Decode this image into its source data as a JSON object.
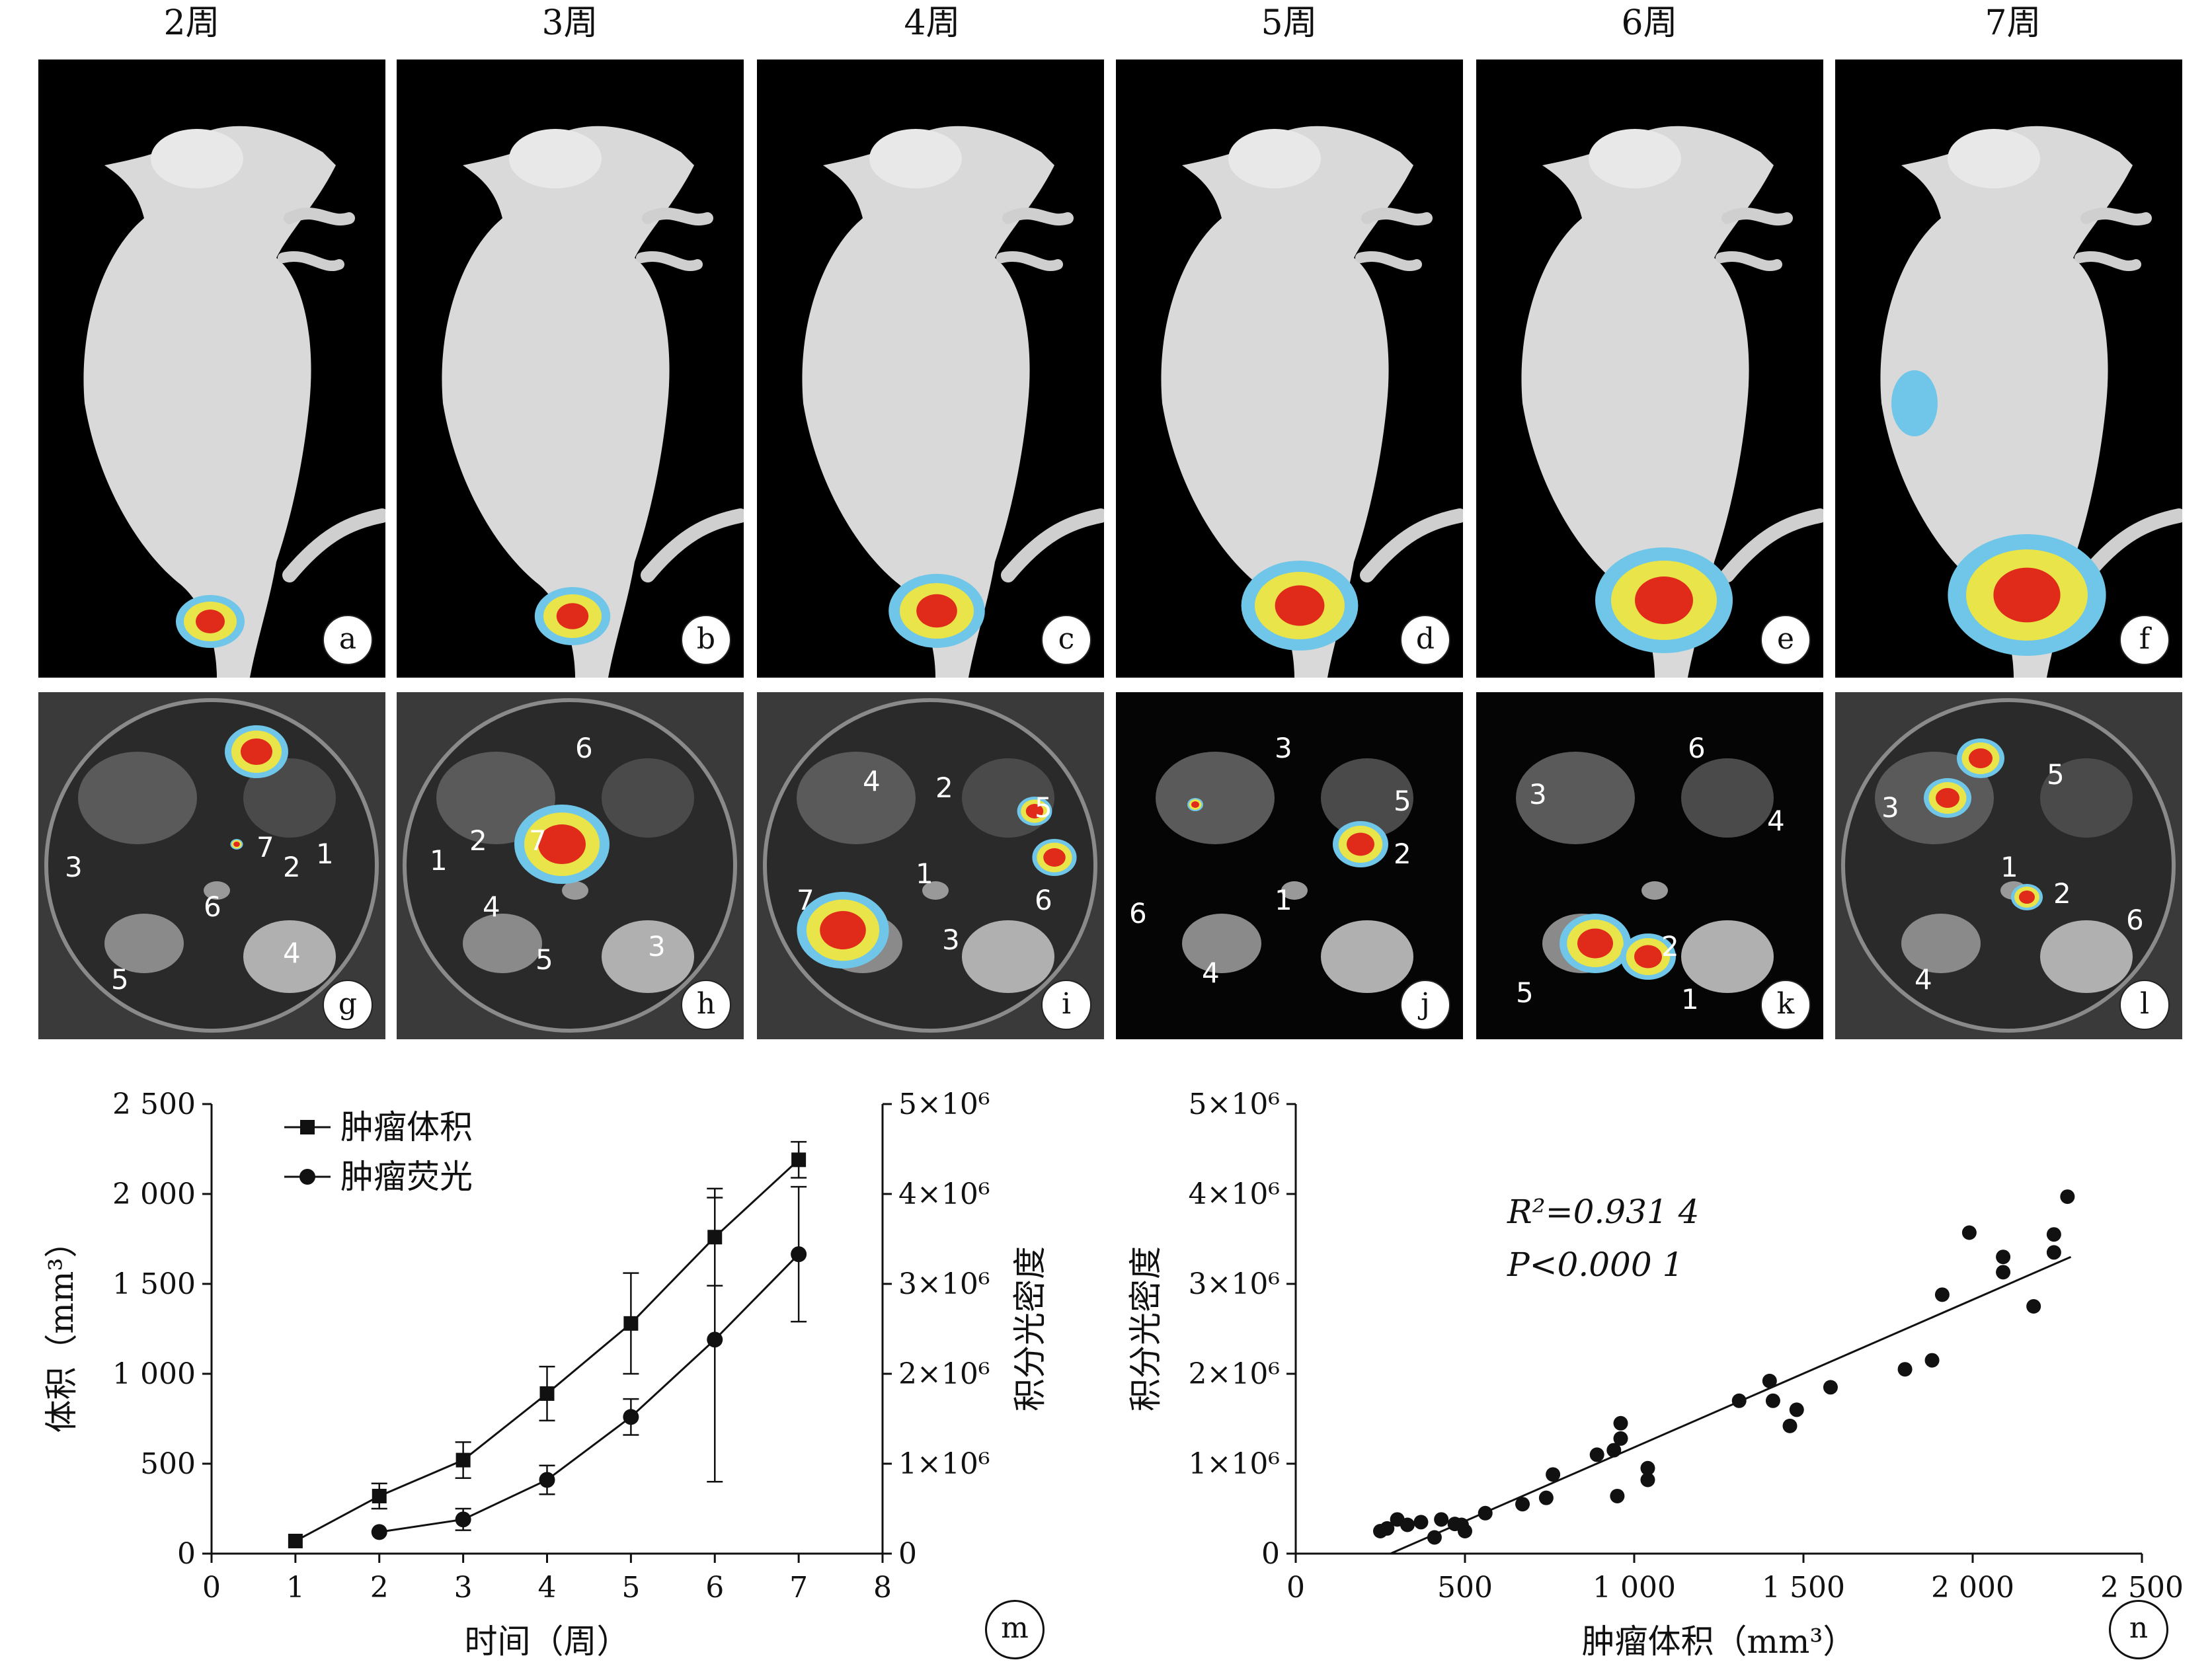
{
  "weeks": [
    "2周",
    "3周",
    "4周",
    "5周",
    "6周",
    "7周"
  ],
  "mouse_panel_labels": [
    "a",
    "b",
    "c",
    "d",
    "e",
    "f"
  ],
  "organ_panel_labels": [
    "g",
    "h",
    "i",
    "j",
    "k",
    "l"
  ],
  "organ_labels": {
    "g": [
      "3",
      "7",
      "6",
      "2",
      "1",
      "5",
      "4"
    ],
    "h": [
      "6",
      "1",
      "2",
      "7",
      "4",
      "5",
      "3"
    ],
    "i": [
      "4",
      "2",
      "5",
      "1",
      "6",
      "7",
      "3"
    ],
    "j": [
      "3",
      "5",
      "2",
      "6",
      "1",
      "4"
    ],
    "k": [
      "6",
      "3",
      "4",
      "2",
      "5",
      "1"
    ],
    "l": [
      "5",
      "3",
      "1",
      "2",
      "6",
      "4"
    ]
  },
  "chart_m": {
    "panel_label": "m",
    "legend": [
      "肿瘤体积",
      "肿瘤荧光"
    ],
    "xlabel": "时间（周）",
    "ylabel_left": "体积（mm³）",
    "ylabel_right": "积分光密度",
    "x_ticks": [
      "0",
      "1",
      "2",
      "3",
      "4",
      "5",
      "6",
      "7",
      "8"
    ],
    "y_ticks_left": [
      "0",
      "500",
      "1 000",
      "1 500",
      "2 000",
      "2 500"
    ],
    "y_ticks_right": [
      "0",
      "1×10⁶",
      "2×10⁶",
      "3×10⁶",
      "4×10⁶",
      "5×10⁶"
    ]
  },
  "chart_n": {
    "panel_label": "n",
    "xlabel": "肿瘤体积（mm³）",
    "ylabel": "积分光密度",
    "x_ticks": [
      "0",
      "500",
      "1 000",
      "1 500",
      "2 000",
      "2 500"
    ],
    "y_ticks": [
      "0",
      "1×10⁶",
      "2×10⁶",
      "3×10⁶",
      "4×10⁶",
      "5×10⁶"
    ],
    "r2_label": "R²=0.931 4",
    "p_label": "P<0.000 1"
  },
  "chart_data": [
    {
      "type": "line",
      "x": [
        1,
        2,
        3,
        4,
        5,
        6,
        7
      ],
      "xlim": [
        0,
        8
      ],
      "ylim_left": [
        0,
        2500
      ],
      "ylim_right": [
        0,
        5000000
      ],
      "series": [
        {
          "name": "肿瘤体积",
          "axis": "left",
          "marker": "square",
          "x": [
            1,
            2,
            3,
            4,
            5,
            6,
            7
          ],
          "values": [
            70,
            320,
            520,
            890,
            1280,
            1760,
            2190
          ],
          "err": [
            0,
            70,
            100,
            150,
            280,
            270,
            100
          ]
        },
        {
          "name": "肿瘤荧光",
          "axis": "right",
          "marker": "circle",
          "x": [
            2,
            3,
            4,
            5,
            6,
            7
          ],
          "values": [
            240000,
            380000,
            820000,
            1520000,
            2380000,
            3330000
          ],
          "err": [
            0,
            120000,
            160000,
            200000,
            1580000,
            750000
          ]
        }
      ],
      "grid": false,
      "legend_position": "top-left"
    },
    {
      "type": "scatter",
      "xlim": [
        0,
        2500
      ],
      "ylim": [
        0,
        5000000
      ],
      "points": [
        [
          250,
          250000
        ],
        [
          270,
          280000
        ],
        [
          300,
          380000
        ],
        [
          330,
          320000
        ],
        [
          370,
          350000
        ],
        [
          410,
          180000
        ],
        [
          430,
          380000
        ],
        [
          470,
          330000
        ],
        [
          490,
          320000
        ],
        [
          500,
          250000
        ],
        [
          560,
          450000
        ],
        [
          670,
          550000
        ],
        [
          740,
          620000
        ],
        [
          760,
          880000
        ],
        [
          890,
          1100000
        ],
        [
          940,
          1150000
        ],
        [
          950,
          640000
        ],
        [
          960,
          1450000
        ],
        [
          960,
          1280000
        ],
        [
          1040,
          820000
        ],
        [
          1040,
          950000
        ],
        [
          1310,
          1700000
        ],
        [
          1400,
          1920000
        ],
        [
          1410,
          1700000
        ],
        [
          1460,
          1420000
        ],
        [
          1480,
          1600000
        ],
        [
          1580,
          1850000
        ],
        [
          1800,
          2050000
        ],
        [
          1880,
          2150000
        ],
        [
          1910,
          2880000
        ],
        [
          1990,
          3570000
        ],
        [
          2090,
          3300000
        ],
        [
          2090,
          3130000
        ],
        [
          2180,
          2750000
        ],
        [
          2240,
          3550000
        ],
        [
          2240,
          3350000
        ],
        [
          2280,
          3970000
        ]
      ],
      "fit_line": {
        "x": [
          280,
          2290
        ],
        "y": [
          0,
          3300000
        ]
      },
      "grid": false
    }
  ]
}
